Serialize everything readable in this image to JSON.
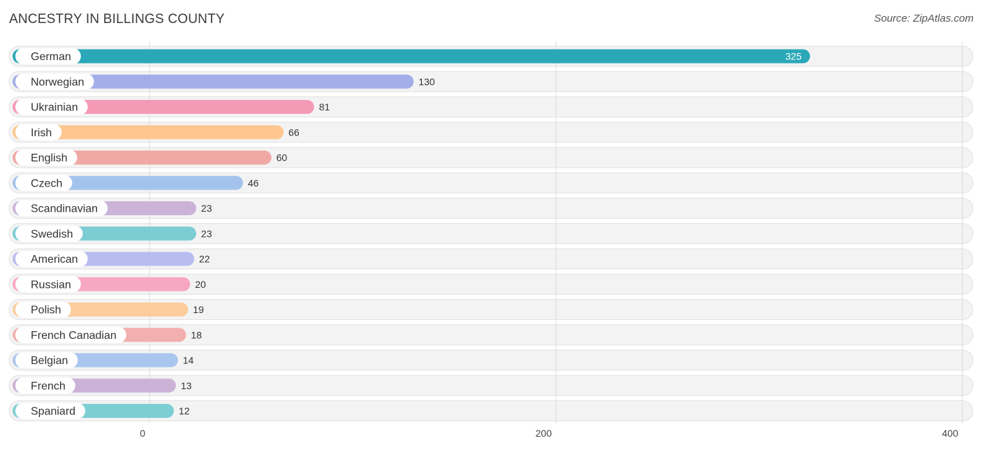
{
  "title": "ANCESTRY IN BILLINGS COUNTY",
  "source": "Source: ZipAtlas.com",
  "chart_data": {
    "type": "bar",
    "orientation": "horizontal",
    "title": "ANCESTRY IN BILLINGS COUNTY",
    "xlim": [
      0,
      400
    ],
    "xticks": [
      0,
      200,
      400
    ],
    "categories": [
      "German",
      "Norwegian",
      "Ukrainian",
      "Irish",
      "English",
      "Czech",
      "Scandinavian",
      "Swedish",
      "American",
      "Russian",
      "Polish",
      "French Canadian",
      "Belgian",
      "French",
      "Spaniard"
    ],
    "values": [
      325,
      130,
      81,
      66,
      60,
      46,
      23,
      23,
      22,
      20,
      19,
      18,
      14,
      13,
      12
    ],
    "colors": [
      "#2aa8b8",
      "#a3aee8",
      "#f59ab6",
      "#fdc78f",
      "#f0a8a4",
      "#a4c3ec",
      "#cbb3d8",
      "#7ccdd3",
      "#b8bdf0",
      "#f7a7c1",
      "#fccd9b",
      "#f2afae",
      "#a9c6ee",
      "#cdb2d7",
      "#7dcdd4"
    ]
  }
}
